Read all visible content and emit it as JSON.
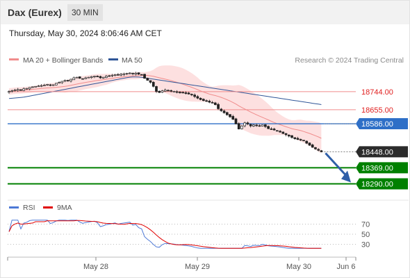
{
  "header": {
    "instrument": "Dax (Eurex)",
    "timeframe": "30 MIN",
    "datetime": "Thursday, May 30, 2024 8:06:46 AM CET"
  },
  "legend": [
    {
      "name": "MA 20 + Bollinger Bands",
      "color": "#f08c8c"
    },
    {
      "name": "MA 50",
      "color": "#2f5597"
    }
  ],
  "credit": "Research © 2024 Trading Central",
  "chart_data": [
    {
      "type": "candlestick",
      "ylim": [
        18230,
        18860
      ],
      "x_ticks": [
        "May 28",
        "May 29",
        "May 30",
        "Jun 6"
      ],
      "close": [
        18745,
        18748,
        18752,
        18755,
        18750,
        18758,
        18760,
        18765,
        18768,
        18770,
        18772,
        18774,
        18776,
        18780,
        18775,
        18778,
        18785,
        18790,
        18795,
        18800,
        18798,
        18805,
        18812,
        18815,
        18810,
        18808,
        18812,
        18815,
        18818,
        18820,
        18818,
        18812,
        18815,
        18820,
        18822,
        18825,
        18828,
        18826,
        18830,
        18832,
        18834,
        18836,
        18832,
        18835,
        18830,
        18828,
        18810,
        18800,
        18790,
        18770,
        18745,
        18740,
        18748,
        18752,
        18750,
        18748,
        18746,
        18742,
        18740,
        18738,
        18735,
        18732,
        18728,
        18720,
        18712,
        18705,
        18700,
        18698,
        18692,
        18690,
        18680,
        18660,
        18650,
        18640,
        18630,
        18620,
        18608,
        18585,
        18560,
        18575,
        18590,
        18585,
        18575,
        18580,
        18578,
        18575,
        18580,
        18572,
        18562,
        18558,
        18555,
        18550,
        18545,
        18538,
        18532,
        18525,
        18518,
        18512,
        18508,
        18505,
        18502,
        18490,
        18480,
        18470,
        18462,
        18455,
        18448
      ],
      "price_levels": [
        {
          "value": 18744.0,
          "label": "18744.00",
          "kind": "resistance"
        },
        {
          "value": 18655.0,
          "label": "18655.00",
          "kind": "resistance"
        },
        {
          "value": 18586.0,
          "label": "18586.00",
          "kind": "pivot"
        },
        {
          "value": 18448.0,
          "label": "18448.00",
          "kind": "last"
        },
        {
          "value": 18369.0,
          "label": "18369.00",
          "kind": "target"
        },
        {
          "value": 18290.0,
          "label": "18290.00",
          "kind": "target"
        }
      ],
      "colors": {
        "resistance": "#f08c8c",
        "pivot": "#2e6fc7",
        "target": "#008000",
        "last": "#2b2b2b",
        "ma20": "#f08c8c",
        "ma50": "#2f5597",
        "band": "#fcd6d6"
      }
    },
    {
      "type": "line",
      "legend": [
        {
          "name": "RSI",
          "color": "#4d79d6"
        },
        {
          "name": "9MA",
          "color": "#e00000"
        }
      ],
      "levels": [
        70,
        50,
        30
      ],
      "ylim": [
        10,
        90
      ]
    }
  ]
}
